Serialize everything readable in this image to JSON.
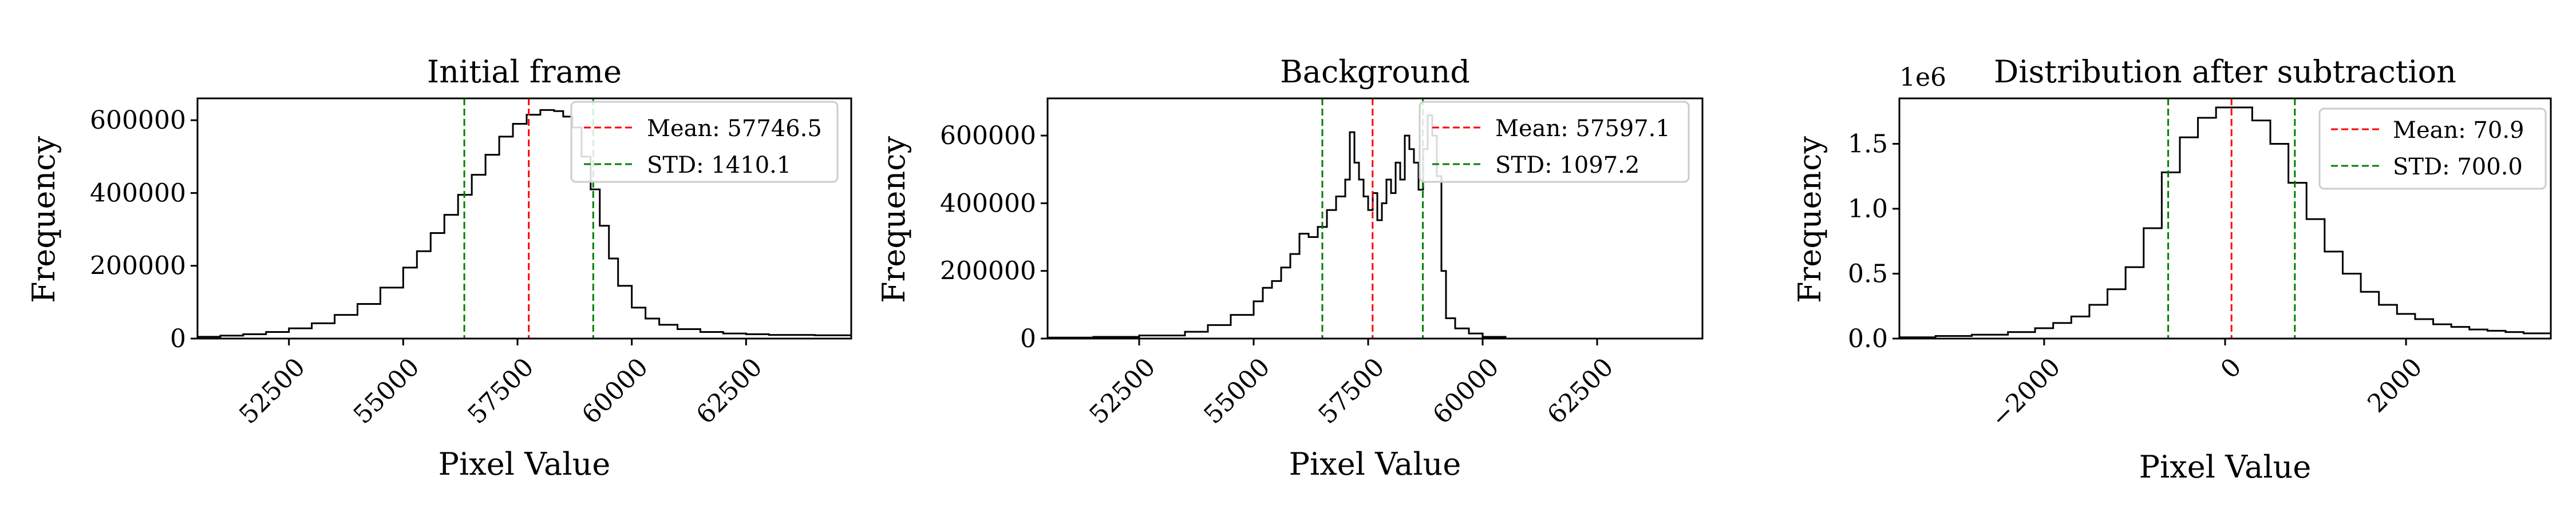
{
  "figure": {
    "panels": [
      {
        "title": "Initial frame",
        "xlabel": "Pixel Value",
        "ylabel": "Frequency",
        "y_offset_label": "",
        "legend": [
          "Mean: 57746.5",
          "STD: 1410.1"
        ],
        "xticks": [
          "52500",
          "55000",
          "57500",
          "60000",
          "62500"
        ],
        "yticks": [
          "0",
          "200000",
          "400000",
          "600000"
        ]
      },
      {
        "title": "Background",
        "xlabel": "Pixel Value",
        "ylabel": "Frequency",
        "y_offset_label": "",
        "legend": [
          "Mean: 57597.1",
          "STD: 1097.2"
        ],
        "xticks": [
          "52500",
          "55000",
          "57500",
          "60000",
          "62500"
        ],
        "yticks": [
          "0",
          "200000",
          "400000",
          "600000"
        ]
      },
      {
        "title": "Distribution after subtraction",
        "xlabel": "Pixel Value",
        "ylabel": "Frequency",
        "y_offset_label": "1e6",
        "legend": [
          "Mean: 70.9",
          "STD: 700.0"
        ],
        "xticks": [
          "−2000",
          "0",
          "2000"
        ],
        "yticks": [
          "0.0",
          "0.5",
          "1.0",
          "1.5"
        ]
      }
    ]
  },
  "chart_data": [
    {
      "type": "histogram",
      "title": "Initial frame",
      "xlabel": "Pixel Value",
      "ylabel": "Frequency",
      "xlim": [
        50500,
        64800
      ],
      "ylim": [
        0,
        660000
      ],
      "xtick_values": [
        52500,
        55000,
        57500,
        60000,
        62500
      ],
      "ytick_values": [
        0,
        200000,
        400000,
        600000
      ],
      "histogram": {
        "x": [
          50500,
          51000,
          51500,
          52000,
          52500,
          53000,
          53500,
          54000,
          54500,
          55000,
          55300,
          55600,
          55900,
          56200,
          56500,
          56800,
          57100,
          57400,
          57700,
          58000,
          58300,
          58500,
          58700,
          58900,
          59100,
          59300,
          59500,
          59700,
          60000,
          60300,
          60600,
          61000,
          61500,
          62000,
          62500,
          63000,
          64000,
          64800
        ],
        "y": [
          5000,
          8000,
          12000,
          18000,
          28000,
          42000,
          65000,
          95000,
          140000,
          195000,
          240000,
          290000,
          340000,
          395000,
          450000,
          505000,
          555000,
          590000,
          615000,
          628000,
          625000,
          610000,
          580000,
          500000,
          410000,
          310000,
          220000,
          145000,
          85000,
          55000,
          38000,
          26000,
          18000,
          14000,
          12000,
          10000,
          9000,
          8000
        ]
      },
      "lines": [
        {
          "name": "Mean: 57746.5",
          "x": 57746.5,
          "color": "#ff0000",
          "style": "dashed"
        },
        {
          "name": "STD: 1410.1",
          "x": [
            56336.4,
            59156.6
          ],
          "color": "#008000",
          "style": "dashed"
        }
      ],
      "legend_position": "upper right"
    },
    {
      "type": "histogram",
      "title": "Background",
      "xlabel": "Pixel Value",
      "ylabel": "Frequency",
      "xlim": [
        50500,
        64800
      ],
      "ylim": [
        0,
        710000
      ],
      "xtick_values": [
        52500,
        55000,
        57500,
        60000,
        62500
      ],
      "ytick_values": [
        0,
        200000,
        400000,
        600000
      ],
      "histogram": {
        "x": [
          50500,
          51500,
          52500,
          53500,
          54000,
          54500,
          55000,
          55200,
          55400,
          55600,
          55800,
          56000,
          56200,
          56400,
          56600,
          56800,
          57000,
          57100,
          57200,
          57300,
          57400,
          57500,
          57600,
          57700,
          57800,
          57900,
          58000,
          58100,
          58200,
          58300,
          58400,
          58500,
          58600,
          58700,
          58800,
          58900,
          59000,
          59100,
          59200,
          59400,
          59700,
          60000,
          60500
        ],
        "y": [
          3000,
          5000,
          9000,
          20000,
          40000,
          70000,
          110000,
          150000,
          170000,
          210000,
          250000,
          310000,
          300000,
          330000,
          380000,
          420000,
          470000,
          610000,
          520000,
          470000,
          420000,
          380000,
          430000,
          350000,
          400000,
          470000,
          430000,
          520000,
          470000,
          600000,
          560000,
          520000,
          440000,
          560000,
          660000,
          600000,
          480000,
          200000,
          60000,
          30000,
          15000,
          5000,
          0
        ]
      },
      "lines": [
        {
          "name": "Mean: 57597.1",
          "x": 57597.1,
          "color": "#ff0000",
          "style": "dashed"
        },
        {
          "name": "STD: 1097.2",
          "x": [
            56499.9,
            58694.3
          ],
          "color": "#008000",
          "style": "dashed"
        }
      ],
      "legend_position": "upper right"
    },
    {
      "type": "histogram",
      "title": "Distribution after subtraction",
      "xlabel": "Pixel Value",
      "ylabel": "Frequency",
      "y_offset": "1e6",
      "xlim": [
        -3600,
        3600
      ],
      "ylim": [
        0,
        1.85
      ],
      "xtick_values": [
        -2000,
        0,
        2000
      ],
      "ytick_values": [
        0.0,
        0.5,
        1.0,
        1.5
      ],
      "histogram": {
        "x": [
          -3600,
          -3200,
          -2800,
          -2400,
          -2100,
          -1900,
          -1700,
          -1500,
          -1300,
          -1100,
          -900,
          -700,
          -500,
          -300,
          -100,
          100,
          300,
          500,
          700,
          900,
          1100,
          1300,
          1500,
          1700,
          1900,
          2100,
          2300,
          2500,
          2700,
          2900,
          3100,
          3300
        ],
        "y": [
          0.01,
          0.02,
          0.03,
          0.05,
          0.08,
          0.12,
          0.17,
          0.26,
          0.38,
          0.55,
          0.85,
          1.28,
          1.55,
          1.7,
          1.78,
          1.78,
          1.68,
          1.5,
          1.2,
          0.92,
          0.67,
          0.5,
          0.36,
          0.26,
          0.19,
          0.15,
          0.11,
          0.09,
          0.07,
          0.06,
          0.05,
          0.04
        ]
      },
      "lines": [
        {
          "name": "Mean: 70.9",
          "x": 70.9,
          "color": "#ff0000",
          "style": "dashed"
        },
        {
          "name": "STD: 700.0",
          "x": [
            -629.1,
            770.9
          ],
          "color": "#008000",
          "style": "dashed"
        }
      ],
      "legend_position": "upper right"
    }
  ]
}
